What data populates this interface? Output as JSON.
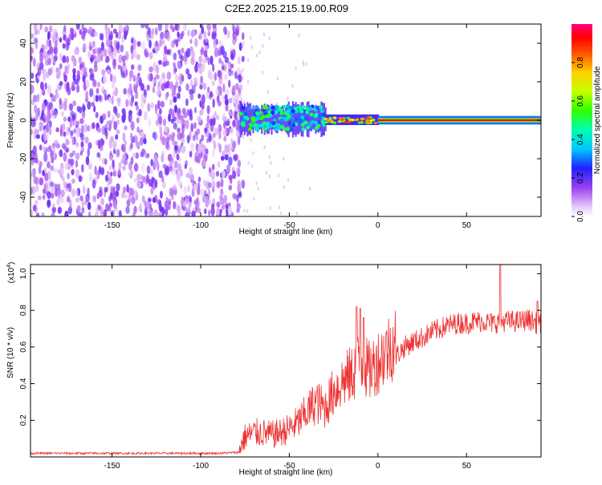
{
  "title": "C2E2.2025.215.19.00.R09",
  "chart_data": [
    {
      "type": "heatmap",
      "xlabel": "Height of straight line (km)",
      "ylabel": "Frequency (Hz)",
      "xlim": [
        -196,
        92
      ],
      "ylim": [
        -50,
        50
      ],
      "xticks": [
        -150,
        -100,
        -50,
        0,
        50
      ],
      "yticks": [
        -40,
        -20,
        0,
        20,
        40
      ],
      "colorbar": {
        "label": "Normalized spectral amplitude",
        "range": [
          0,
          1
        ],
        "ticks": [
          0.0,
          0.2,
          0.4,
          0.6,
          0.8
        ],
        "tick_labels": [
          "0.0",
          "0.2",
          "0.4",
          "0.6",
          "0.8"
        ]
      },
      "regions": [
        {
          "x_range": [
            -196,
            -78
          ],
          "freq_range": [
            -50,
            50
          ],
          "amplitude": 0.1
        },
        {
          "x_range": [
            -78,
            -30
          ],
          "freq_range": [
            -8,
            10
          ],
          "amplitude": 0.4
        },
        {
          "x_range": [
            -30,
            0
          ],
          "freq_range": [
            -3,
            4
          ],
          "amplitude": 0.75
        },
        {
          "x_range": [
            0,
            92
          ],
          "freq_range": [
            -1,
            1
          ],
          "amplitude": 0.95
        }
      ]
    },
    {
      "type": "line",
      "xlabel": "Height of straight line (km)",
      "ylabel": "SNR (10 * v/v)",
      "yscale_note": "(x10",
      "yscale_exp": "4",
      "xlim": [
        -196,
        92
      ],
      "ylim": [
        0,
        1.05
      ],
      "xticks": [
        -150,
        -100,
        -50,
        0,
        50
      ],
      "yticks": [
        0.2,
        0.4,
        0.6,
        0.8,
        1.0
      ],
      "ytick_labels": [
        "0.2",
        "0.4",
        "0.6",
        "0.8",
        "1.0"
      ],
      "color": "#ee3333",
      "series": [
        {
          "x": [
            -196,
            -160,
            -120,
            -90,
            -78,
            -75,
            -70,
            -65,
            -60,
            -55,
            -50,
            -45,
            -40,
            -35,
            -30,
            -25,
            -20,
            -15,
            -10,
            -5,
            0,
            5,
            10,
            15,
            20,
            25,
            30,
            35,
            40,
            45,
            50,
            55,
            60,
            65,
            70,
            75,
            80,
            85,
            92
          ],
          "values": [
            0.02,
            0.02,
            0.02,
            0.02,
            0.025,
            0.08,
            0.1,
            0.1,
            0.09,
            0.1,
            0.12,
            0.15,
            0.2,
            0.25,
            0.22,
            0.3,
            0.35,
            0.38,
            0.45,
            0.4,
            0.45,
            0.5,
            0.55,
            0.6,
            0.63,
            0.65,
            0.68,
            0.7,
            0.72,
            0.73,
            0.73,
            0.74,
            0.74,
            0.73,
            0.74,
            0.74,
            0.74,
            0.75,
            0.72
          ]
        }
      ],
      "peaks": [
        {
          "x": 69,
          "value": 1.05
        },
        {
          "x": -10,
          "value": 0.81
        },
        {
          "x": -12,
          "value": 0.82
        },
        {
          "x": -8,
          "value": 0.76
        },
        {
          "x": 90,
          "value": 0.85
        }
      ]
    }
  ]
}
